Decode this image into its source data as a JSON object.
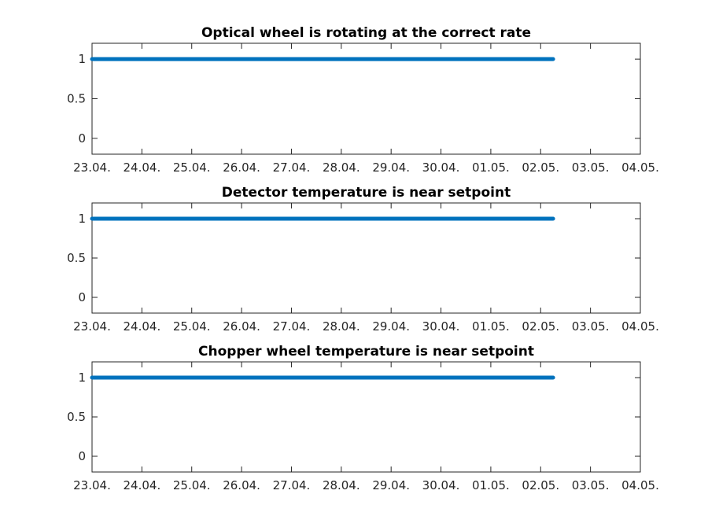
{
  "chart_data": [
    {
      "type": "line",
      "title": "Optical wheel is rotating at the correct rate",
      "xlabel": "",
      "ylabel": "",
      "xlim": [
        "23.04.",
        "04.05."
      ],
      "x_ticks": [
        "23.04.",
        "24.04.",
        "25.04.",
        "26.04.",
        "27.04.",
        "28.04.",
        "29.04.",
        "30.04.",
        "01.05.",
        "02.05.",
        "03.05.",
        "04.05."
      ],
      "ylim": [
        -0.2,
        1.2
      ],
      "y_ticks": [
        0,
        0.5,
        1
      ],
      "y_tick_labels": [
        "0",
        "0.5",
        "1"
      ],
      "grid": false,
      "series": [
        {
          "color": "#0072BD",
          "x": [
            "23.04.",
            "02.05. 06:00"
          ],
          "y": [
            1,
            1
          ]
        }
      ]
    },
    {
      "type": "line",
      "title": "Detector temperature is near setpoint",
      "xlabel": "",
      "ylabel": "",
      "xlim": [
        "23.04.",
        "04.05."
      ],
      "x_ticks": [
        "23.04.",
        "24.04.",
        "25.04.",
        "26.04.",
        "27.04.",
        "28.04.",
        "29.04.",
        "30.04.",
        "01.05.",
        "02.05.",
        "03.05.",
        "04.05."
      ],
      "ylim": [
        -0.2,
        1.2
      ],
      "y_ticks": [
        0,
        0.5,
        1
      ],
      "y_tick_labels": [
        "0",
        "0.5",
        "1"
      ],
      "grid": false,
      "series": [
        {
          "color": "#0072BD",
          "x": [
            "23.04.",
            "02.05. 06:00"
          ],
          "y": [
            1,
            1
          ]
        }
      ]
    },
    {
      "type": "line",
      "title": "Chopper wheel temperature is near setpoint",
      "xlabel": "",
      "ylabel": "",
      "xlim": [
        "23.04.",
        "04.05."
      ],
      "x_ticks": [
        "23.04.",
        "24.04.",
        "25.04.",
        "26.04.",
        "27.04.",
        "28.04.",
        "29.04.",
        "30.04.",
        "01.05.",
        "02.05.",
        "03.05.",
        "04.05."
      ],
      "ylim": [
        -0.2,
        1.2
      ],
      "y_ticks": [
        0,
        0.5,
        1
      ],
      "y_tick_labels": [
        "0",
        "0.5",
        "1"
      ],
      "grid": false,
      "series": [
        {
          "color": "#0072BD",
          "x": [
            "23.04.",
            "02.05. 06:00"
          ],
          "y": [
            1,
            1
          ]
        }
      ]
    }
  ]
}
